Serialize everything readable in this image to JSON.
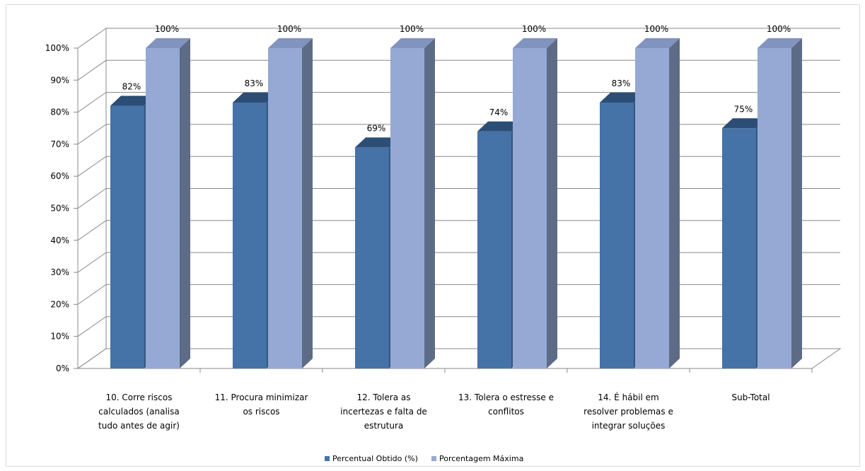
{
  "chart_data": {
    "type": "bar",
    "title": "",
    "xlabel": "",
    "ylabel": "",
    "ylim": [
      0,
      100
    ],
    "y_ticks": [
      "0%",
      "10%",
      "20%",
      "30%",
      "40%",
      "50%",
      "60%",
      "70%",
      "80%",
      "90%",
      "100%"
    ],
    "grid": true,
    "three_d": true,
    "legend_position": "bottom",
    "categories": [
      [
        "10. Corre riscos",
        "calculados (analisa",
        "tudo antes de agir)"
      ],
      [
        "11. Procura minimizar",
        "os riscos"
      ],
      [
        "12. Tolera as",
        "incertezas e falta de",
        "estrutura"
      ],
      [
        "13. Tolera o estresse e",
        "conflitos"
      ],
      [
        "14. É hábil em",
        "resolver problemas e",
        "integrar soluções"
      ],
      [
        "Sub-Total"
      ]
    ],
    "series": [
      {
        "name": "Percentual Obtido (%)",
        "values": [
          82,
          83,
          69,
          74,
          83,
          75
        ],
        "labels": [
          "82%",
          "83%",
          "69%",
          "74%",
          "83%",
          "75%"
        ],
        "color": "#4572a7",
        "top_color": "#2c4d75",
        "side_color": "#34577f"
      },
      {
        "name": "Porcentagem Máxima",
        "values": [
          100,
          100,
          100,
          100,
          100,
          100
        ],
        "labels": [
          "100%",
          "100%",
          "100%",
          "100%",
          "100%",
          "100%"
        ],
        "color": "#95a9d4",
        "top_color": "#8194bf",
        "side_color": "#5e6b87"
      }
    ]
  }
}
